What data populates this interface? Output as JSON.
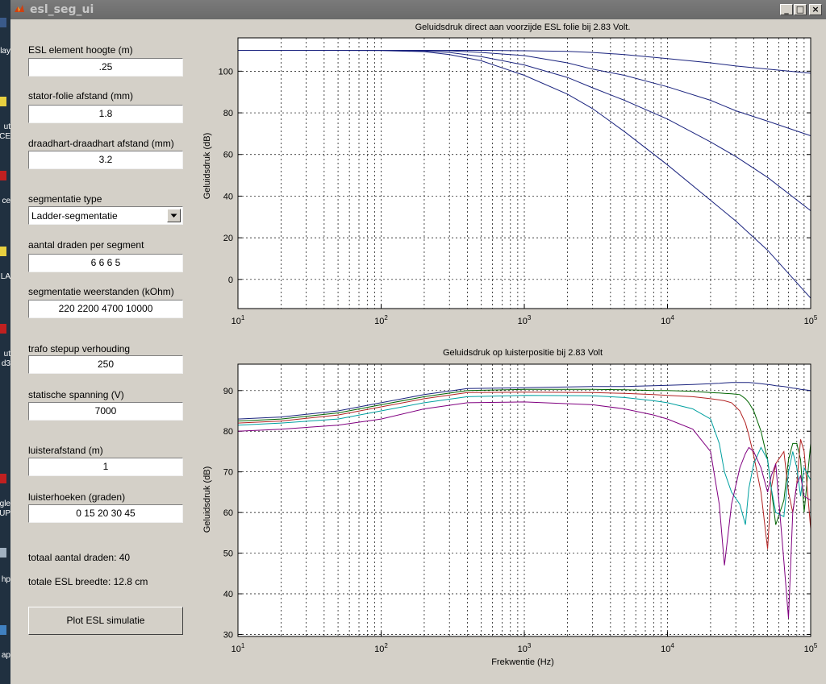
{
  "desktop": {
    "labels": [
      "lay",
      "ut",
      "CE",
      "ce",
      "LA",
      "ut",
      "d3",
      "gle",
      "UP",
      "hp",
      "ap"
    ]
  },
  "window": {
    "title": "esl_seg_ui",
    "buttons": {
      "minimize": "_",
      "maximize": "□",
      "close": "×"
    }
  },
  "form": {
    "element_height": {
      "label": "ESL element hoogte (m)",
      "value": ".25"
    },
    "stator_gap": {
      "label": "stator-folie afstand (mm)",
      "value": "1.8"
    },
    "wire_pitch": {
      "label": "draadhart-draadhart afstand (mm)",
      "value": "3.2"
    },
    "segmentation_type": {
      "label": "segmentatie type",
      "value": "Ladder-segmentatie"
    },
    "wires_per_segment": {
      "label": "aantal draden per segment",
      "value": "6 6 6 5"
    },
    "segment_resistors": {
      "label": "segmentatie weerstanden (kOhm)",
      "value": "220 2200 4700 10000"
    },
    "trafo_ratio": {
      "label": "trafo stepup verhouding",
      "value": "250"
    },
    "bias_voltage": {
      "label": "statische spanning (V)",
      "value": "7000"
    },
    "listen_distance": {
      "label": "luisterafstand (m)",
      "value": "1"
    },
    "listen_angles": {
      "label": "luisterhoeken (graden)",
      "value": "0 15 20 30 45"
    },
    "total_wires": "totaal aantal draden: 40",
    "total_width": "totale ESL breedte: 12.8 cm",
    "plot_button": "Plot ESL simulatie"
  },
  "chart_data": [
    {
      "type": "line",
      "title": "Geluidsdruk direct aan voorzijde ESL folie bij 2.83 Volt.",
      "xlabel": "",
      "ylabel": "Geluidsdruk (dB)",
      "x_scale": "log",
      "xlim": [
        10,
        100000
      ],
      "ylim": [
        -14,
        116
      ],
      "yticks": [
        0,
        20,
        40,
        60,
        80,
        100
      ],
      "xtick_exponents": [
        "1",
        "2",
        "3",
        "4",
        "5"
      ],
      "grid": true,
      "x": [
        10,
        30,
        100,
        200,
        300,
        500,
        1000,
        2000,
        3000,
        5000,
        10000,
        20000,
        30000,
        50000,
        100000
      ],
      "series": [
        {
          "color": "#1a237e",
          "values": [
            110,
            110,
            110,
            110,
            110,
            110,
            109.8,
            109.5,
            109,
            108,
            106,
            104,
            102.5,
            101,
            99
          ]
        },
        {
          "color": "#1a237e",
          "values": [
            110,
            110,
            110,
            110,
            109.8,
            109,
            107.5,
            104,
            101,
            98,
            92.5,
            86,
            81,
            76,
            69
          ]
        },
        {
          "color": "#1a237e",
          "values": [
            110,
            110,
            110,
            109.7,
            109,
            107,
            103,
            97,
            92,
            86,
            77,
            66,
            59,
            49,
            33
          ]
        },
        {
          "color": "#1a237e",
          "values": [
            110,
            110,
            109.9,
            109.4,
            108,
            105,
            98,
            89,
            82,
            71,
            55,
            38,
            28,
            14,
            -9
          ]
        }
      ]
    },
    {
      "type": "line",
      "title": "Geluidsdruk op luisterpositie bij 2.83 Volt",
      "xlabel": "Frekwentie (Hz)",
      "ylabel": "Geluidsdruk (dB)",
      "x_scale": "log",
      "xlim": [
        10,
        100000
      ],
      "ylim": [
        29.5,
        96.5
      ],
      "yticks": [
        30,
        40,
        50,
        60,
        70,
        80,
        90
      ],
      "xtick_exponents": [
        "1",
        "2",
        "3",
        "4",
        "5"
      ],
      "grid": true,
      "x": [
        10,
        20,
        50,
        100,
        200,
        400,
        1000,
        3000,
        5000,
        8000,
        10000,
        15000,
        20000,
        23000,
        25000,
        28000,
        32000,
        35000,
        37000,
        40000,
        45000,
        50000,
        53000,
        57000,
        65000,
        70000,
        75000,
        80000,
        85000,
        90000,
        100000
      ],
      "series": [
        {
          "color": "#1a237e",
          "values": [
            83,
            83.5,
            85,
            87,
            89,
            90.5,
            90.7,
            91,
            91,
            91.2,
            91.3,
            91.5,
            91.7,
            91.8,
            91.9,
            92,
            92,
            92,
            92,
            91.9,
            91.7,
            91.5,
            91.4,
            91.2,
            91,
            90.8,
            90.6,
            90.5,
            90.3,
            90.2,
            90
          ]
        },
        {
          "color": "#006400",
          "values": [
            82.5,
            83,
            84.5,
            86.5,
            88.5,
            90,
            90.3,
            90.3,
            90.2,
            90,
            90,
            89.8,
            89.5,
            89.4,
            89.3,
            89.2,
            89,
            88,
            87,
            85,
            80,
            73,
            66,
            57,
            63,
            73,
            77,
            77,
            73,
            60,
            77
          ]
        },
        {
          "color": "#b22222",
          "values": [
            82,
            82.5,
            84,
            86,
            88,
            89.5,
            89.6,
            89.5,
            89.3,
            89,
            88.8,
            88.5,
            88,
            87.7,
            87.5,
            87,
            85,
            82,
            79,
            74,
            65,
            51,
            66,
            72,
            75,
            65,
            60,
            67,
            78,
            75,
            56
          ]
        },
        {
          "color": "#00a0a0",
          "values": [
            81.5,
            82,
            83,
            85,
            87,
            88.5,
            88.8,
            88.7,
            88.3,
            87.5,
            87,
            85.5,
            83,
            77,
            70,
            65,
            62,
            57,
            66,
            72,
            76,
            73,
            66,
            60,
            59,
            70,
            75,
            71,
            64,
            71,
            68
          ]
        },
        {
          "color": "#800080",
          "values": [
            80,
            80.5,
            81.5,
            83,
            85.5,
            87,
            87.2,
            86.5,
            85.5,
            84,
            83,
            80.5,
            75,
            62,
            47,
            62,
            71,
            74.5,
            76,
            75,
            71,
            65,
            69,
            72,
            48,
            34,
            60,
            67,
            69,
            64,
            63
          ]
        }
      ]
    }
  ]
}
